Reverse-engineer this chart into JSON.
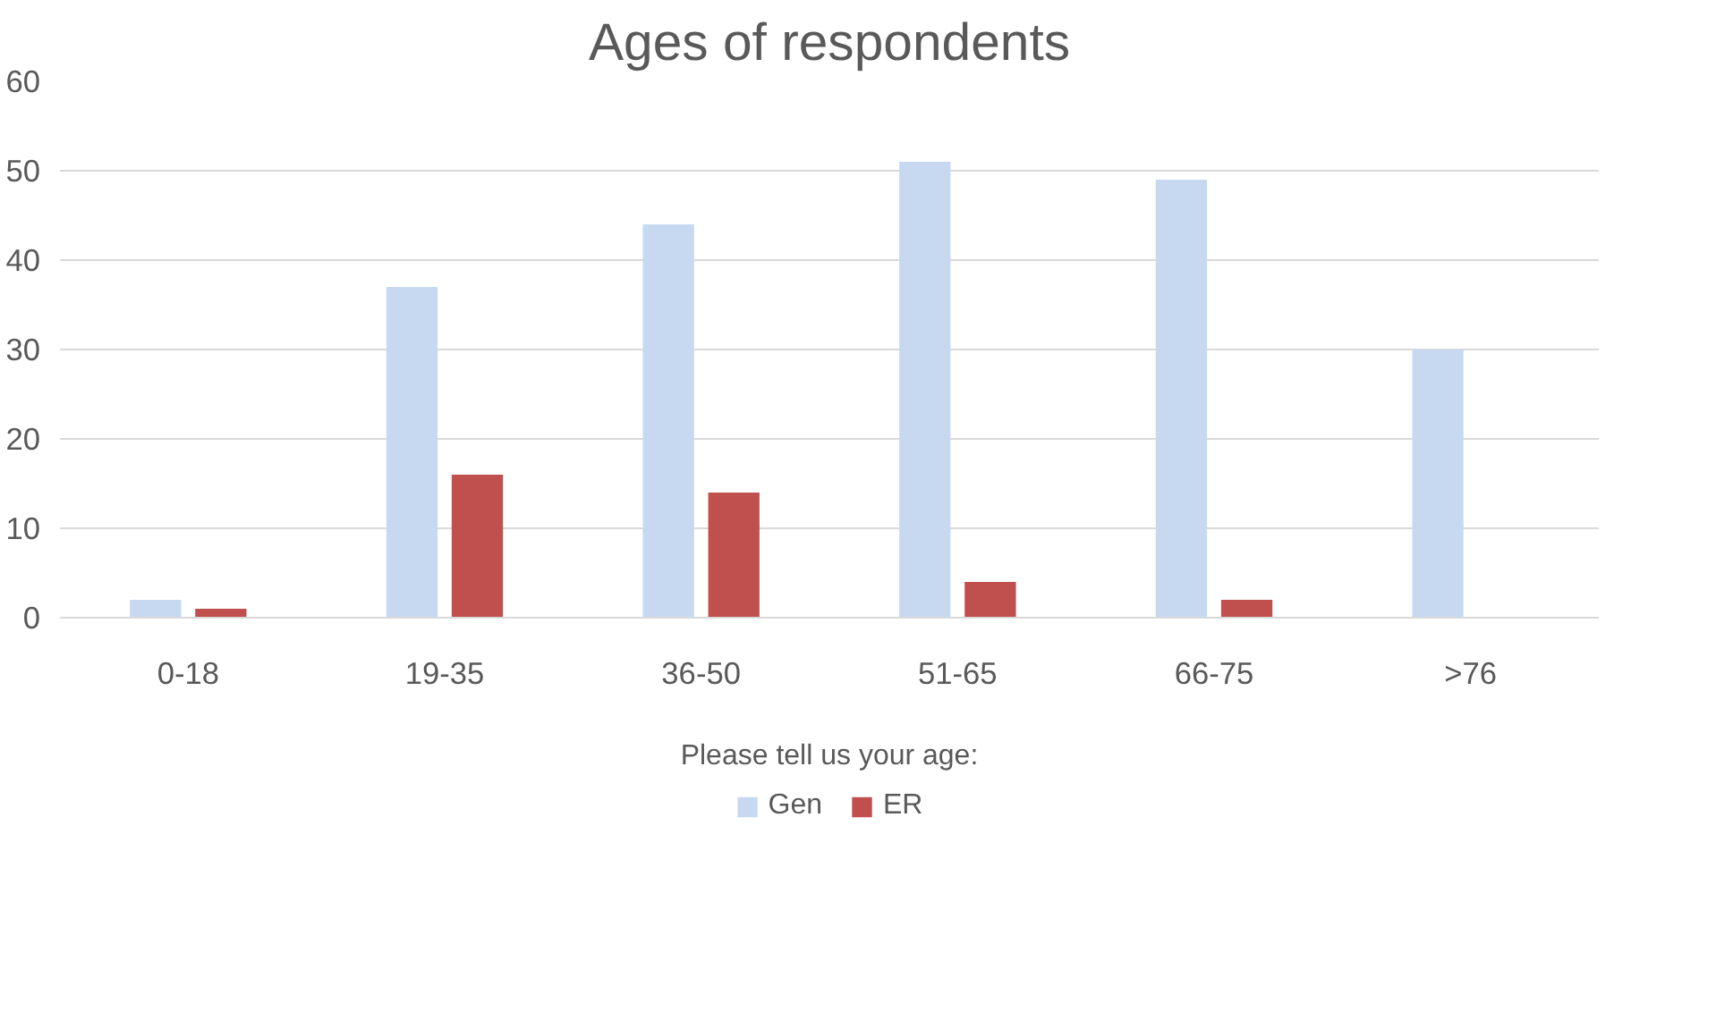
{
  "chart_data": {
    "type": "bar",
    "title": "Ages of respondents",
    "xlabel": "Please tell us your age:",
    "categories": [
      "0-18",
      "19-35",
      "36-50",
      "51-65",
      "66-75",
      ">76"
    ],
    "series": [
      {
        "name": "Gen",
        "color": "#c6d9f1",
        "values": [
          2,
          37,
          44,
          51,
          49,
          30
        ]
      },
      {
        "name": "ER",
        "color": "#c0504d",
        "values": [
          1,
          16,
          14,
          4,
          2,
          0
        ]
      }
    ],
    "ylim": [
      0,
      60
    ],
    "yticks": [
      0,
      10,
      20,
      30,
      40,
      50,
      60
    ],
    "grid": "y",
    "legend": "bottom"
  }
}
